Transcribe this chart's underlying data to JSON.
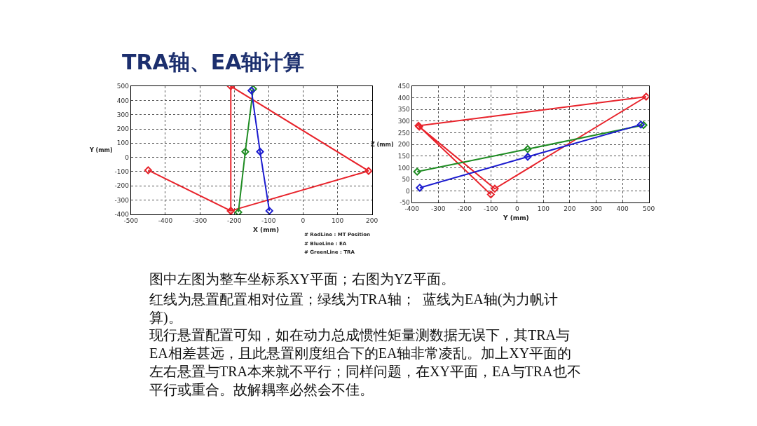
{
  "chart_data": [
    {
      "type": "line",
      "title": "TRA轴、EA轴计算",
      "xlabel": "X (mm)",
      "ylabel": "Y (mm)",
      "xlim": [
        -500,
        200
      ],
      "xticks": [
        -500,
        -400,
        -300,
        -200,
        -100,
        0,
        100,
        200
      ],
      "ylim": [
        -400,
        500
      ],
      "yticks": [
        -400,
        -300,
        -200,
        -100,
        0,
        100,
        200,
        300,
        400,
        500
      ],
      "grid": true,
      "marker": "diamond",
      "line_style": "solid",
      "series": [
        {
          "color": "#e8232b",
          "x": [
            -450,
            -210,
            -210,
            190,
            -210
          ],
          "values": [
            -90,
            -375,
            500,
            -95,
            -375
          ]
        },
        {
          "color": "#1f8c23",
          "x": [
            -188,
            -168,
            -145
          ],
          "values": [
            -385,
            40,
            480
          ]
        },
        {
          "color": "#1c1ccf",
          "x": [
            -150,
            -125,
            -98
          ],
          "values": [
            470,
            40,
            -375
          ]
        }
      ],
      "annotations": [
        "# RedLine : MT Position",
        "# BlueLine : EA",
        "# GreenLine : TRA"
      ]
    },
    {
      "type": "line",
      "xlabel": "Y (mm)",
      "ylabel": "Z (mm)",
      "xlim": [
        -400,
        500
      ],
      "xticks": [
        -400,
        -300,
        -200,
        -100,
        0,
        100,
        200,
        300,
        400,
        500
      ],
      "ylim": [
        -50,
        450
      ],
      "yticks": [
        -50,
        0,
        50,
        100,
        150,
        200,
        250,
        300,
        350,
        400,
        450
      ],
      "grid": true,
      "marker": "diamond",
      "line_style": "solid",
      "series": [
        {
          "color": "#e8232b",
          "x": [
            -100,
            -375,
            490,
            -85,
            -372
          ],
          "values": [
            -15,
            280,
            405,
            10,
            276
          ]
        },
        {
          "color": "#1f8c23",
          "x": [
            -380,
            40,
            480
          ],
          "values": [
            83,
            180,
            283
          ]
        },
        {
          "color": "#1c1ccf",
          "x": [
            -370,
            40,
            470
          ],
          "values": [
            14,
            147,
            285
          ]
        }
      ],
      "annotations": [
        "图中左图为整车坐标系XY平面；右图为YZ平面。",
        "红线为悬置配置相对位置；绿线为TRA轴；  蓝线为EA轴(为力帆计算)。",
        "现行悬置配置可知，如在动力总成惯性矩量测数据无误下，其TRA与EA相差甚远，且此悬置刚度组合下的EA轴非常凌乱。加上XY平面的左右悬置与TRA本来就不平行；同样问题，在XY平面，EA与TRA也不平行或重合。故解耦率必然会不佳。"
      ]
    }
  ]
}
